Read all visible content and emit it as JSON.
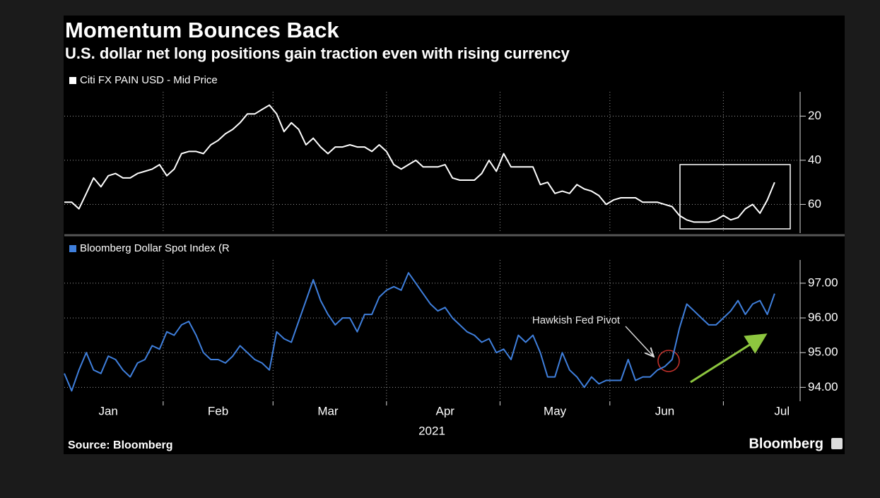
{
  "header": {
    "title": "Momentum Bounces Back",
    "subtitle": "U.S. dollar net long positions gain traction even with rising currency"
  },
  "footer": {
    "source": "Source: Bloomberg",
    "logo": "Bloomberg"
  },
  "chart_data": [
    {
      "type": "line",
      "y_inverted": true,
      "ylim": [
        9,
        73
      ],
      "yticks": [
        20,
        40,
        60
      ],
      "grid": true,
      "series": [
        {
          "name": "Citi FX PAIN USD - Mid Price",
          "color": "#ffffff",
          "values": [
            59,
            59,
            62,
            55,
            48,
            52,
            47,
            46,
            48,
            48,
            46,
            45,
            44,
            42,
            47,
            44,
            37,
            36,
            36,
            37,
            33,
            31,
            28,
            26,
            23,
            19,
            19,
            17,
            15,
            19,
            27,
            23,
            26,
            33,
            30,
            34,
            37,
            34,
            34,
            33,
            34,
            34,
            36,
            33,
            36,
            42,
            44,
            42,
            40,
            43,
            43,
            43,
            42,
            48,
            49,
            49,
            49,
            46,
            40,
            45,
            37,
            43,
            43,
            43,
            43,
            51,
            50,
            55,
            54,
            55,
            51,
            53,
            54,
            56,
            60,
            58,
            57,
            57,
            57,
            59,
            59,
            59,
            60,
            61,
            65,
            67,
            68,
            68,
            68,
            67,
            65,
            67,
            66,
            62,
            60,
            64,
            58,
            50
          ]
        }
      ]
    },
    {
      "type": "line",
      "ylim": [
        93.6,
        97.67
      ],
      "yticks": [
        {
          "value": 94,
          "label": "94.00"
        },
        {
          "value": 95,
          "label": "95.00"
        },
        {
          "value": 96,
          "label": "96.00"
        },
        {
          "value": 97,
          "label": "97.00"
        }
      ],
      "grid": true,
      "xlabel": "2021",
      "annotation": "Hawkish Fed Pivot",
      "categories": [
        null,
        null,
        null,
        null,
        null,
        null,
        "Jan",
        null,
        null,
        null,
        null,
        null,
        null,
        null,
        null,
        null,
        null,
        null,
        null,
        null,
        null,
        "Feb",
        null,
        null,
        null,
        null,
        null,
        null,
        null,
        null,
        null,
        null,
        null,
        null,
        null,
        null,
        "Mar",
        null,
        null,
        null,
        null,
        null,
        null,
        null,
        null,
        null,
        null,
        null,
        null,
        null,
        null,
        null,
        "Apr",
        null,
        null,
        null,
        null,
        null,
        null,
        null,
        null,
        null,
        null,
        null,
        null,
        null,
        null,
        "May",
        null,
        null,
        null,
        null,
        null,
        null,
        null,
        null,
        null,
        null,
        null,
        null,
        null,
        null,
        "Jun",
        null,
        null,
        null,
        null,
        null,
        null,
        null,
        null,
        null,
        null,
        null,
        null,
        null,
        null,
        null,
        "Jul",
        null
      ],
      "series": [
        {
          "name": "Bloomberg Dollar Spot Index (R",
          "color": "#3f7fdc",
          "values": [
            94.4,
            93.9,
            94.5,
            95.0,
            94.5,
            94.4,
            94.9,
            94.8,
            94.5,
            94.3,
            94.7,
            94.8,
            95.2,
            95.1,
            95.6,
            95.5,
            95.8,
            95.9,
            95.5,
            95.0,
            94.8,
            94.8,
            94.7,
            94.9,
            95.2,
            95.0,
            94.8,
            94.7,
            94.5,
            95.6,
            95.4,
            95.3,
            95.9,
            96.5,
            97.1,
            96.5,
            96.1,
            95.8,
            96.0,
            96.0,
            95.6,
            96.1,
            96.1,
            96.6,
            96.8,
            96.9,
            96.8,
            97.3,
            97.0,
            96.7,
            96.4,
            96.2,
            96.3,
            96.0,
            95.8,
            95.6,
            95.5,
            95.3,
            95.4,
            95.0,
            95.1,
            94.8,
            95.5,
            95.3,
            95.5,
            95.0,
            94.3,
            94.3,
            95.0,
            94.5,
            94.3,
            94.0,
            94.3,
            94.1,
            94.2,
            94.2,
            94.2,
            94.8,
            94.2,
            94.3,
            94.3,
            94.5,
            94.6,
            94.8,
            95.7,
            96.4,
            96.2,
            96.0,
            95.8,
            95.8,
            96.0,
            96.2,
            96.5,
            96.1,
            96.4,
            96.5,
            96.1,
            96.7,
            null,
            null
          ]
        }
      ]
    }
  ]
}
